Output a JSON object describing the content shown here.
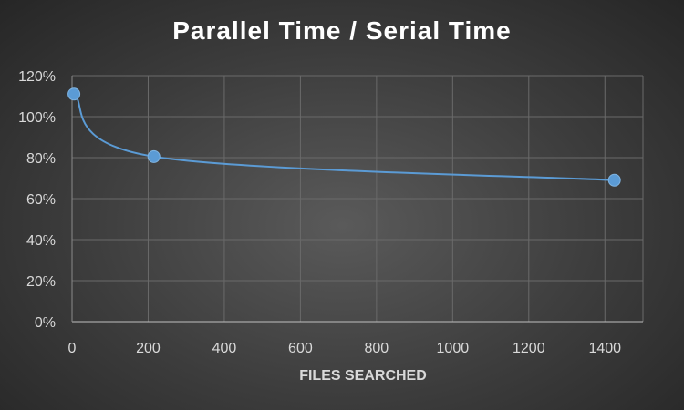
{
  "chart_data": {
    "type": "line",
    "title": "Parallel Time / Serial Time",
    "xlabel": "FILES SEARCHED",
    "ylabel": "",
    "x_ticks": [
      "0",
      "200",
      "400",
      "600",
      "800",
      "1000",
      "1200",
      "1400"
    ],
    "x_tick_values": [
      0,
      200,
      400,
      600,
      800,
      1000,
      1200,
      1400
    ],
    "y_ticks": [
      "0%",
      "20%",
      "40%",
      "60%",
      "80%",
      "100%",
      "120%"
    ],
    "y_tick_values": [
      0,
      20,
      40,
      60,
      80,
      100,
      120
    ],
    "xlim": [
      0,
      1500
    ],
    "ylim": [
      0,
      120
    ],
    "grid": true,
    "series": [
      {
        "x": [
          5,
          215,
          1425
        ],
        "y": [
          111,
          80.5,
          69
        ],
        "color": "#5b9bd5",
        "smooth": true
      }
    ]
  }
}
